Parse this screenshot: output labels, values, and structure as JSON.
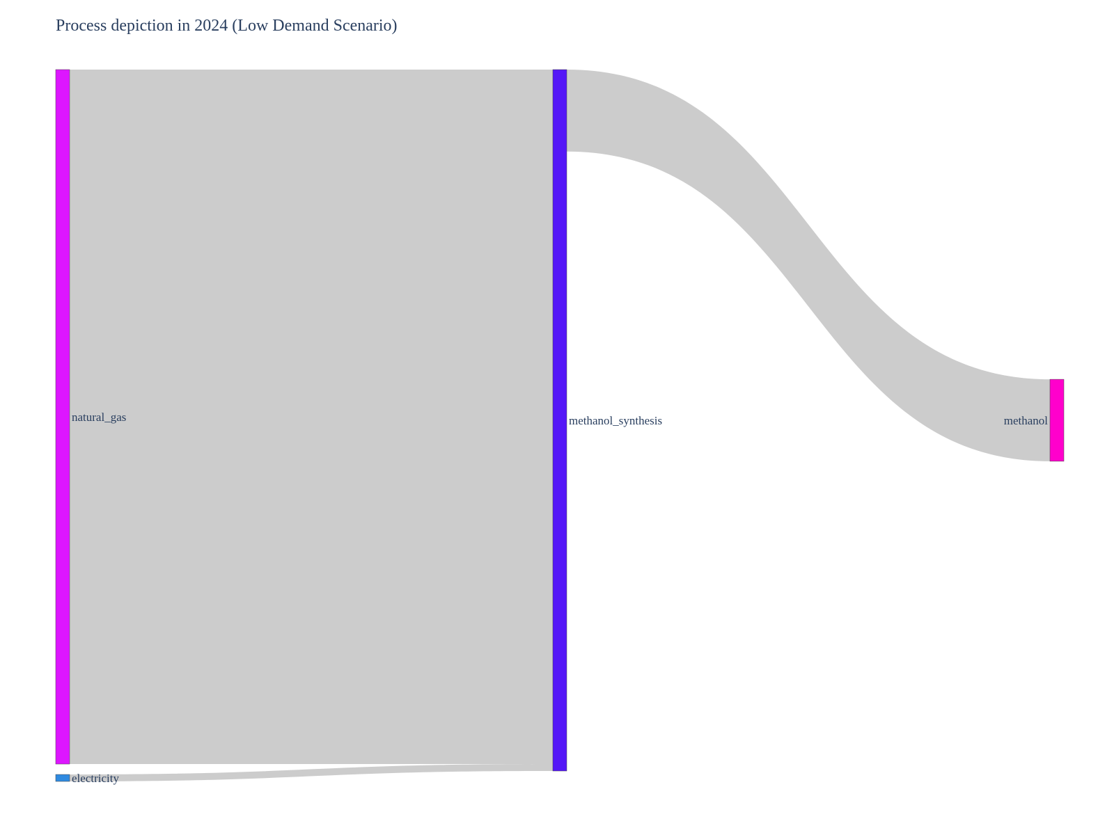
{
  "chart_data": {
    "type": "sankey",
    "title": "Process depiction in 2024 (Low Demand Scenario)",
    "nodes": [
      {
        "id": "natural_gas",
        "label": "natural_gas",
        "color": "#dd16ff",
        "column": 0
      },
      {
        "id": "electricity",
        "label": "electricity",
        "color": "#2f8ae0",
        "column": 0
      },
      {
        "id": "methanol_synthesis",
        "label": "methanol_synthesis",
        "color": "#5417f7",
        "column": 1
      },
      {
        "id": "methanol",
        "label": "methanol",
        "color": "#ff00cc",
        "column": 2
      }
    ],
    "links": [
      {
        "source": "natural_gas",
        "target": "methanol_synthesis",
        "value": 1000
      },
      {
        "source": "electricity",
        "target": "methanol_synthesis",
        "value": 10
      },
      {
        "source": "methanol_synthesis",
        "target": "methanol",
        "value": 118
      }
    ],
    "link_color": "#cccccc",
    "label_color": "#2a3f5f"
  }
}
